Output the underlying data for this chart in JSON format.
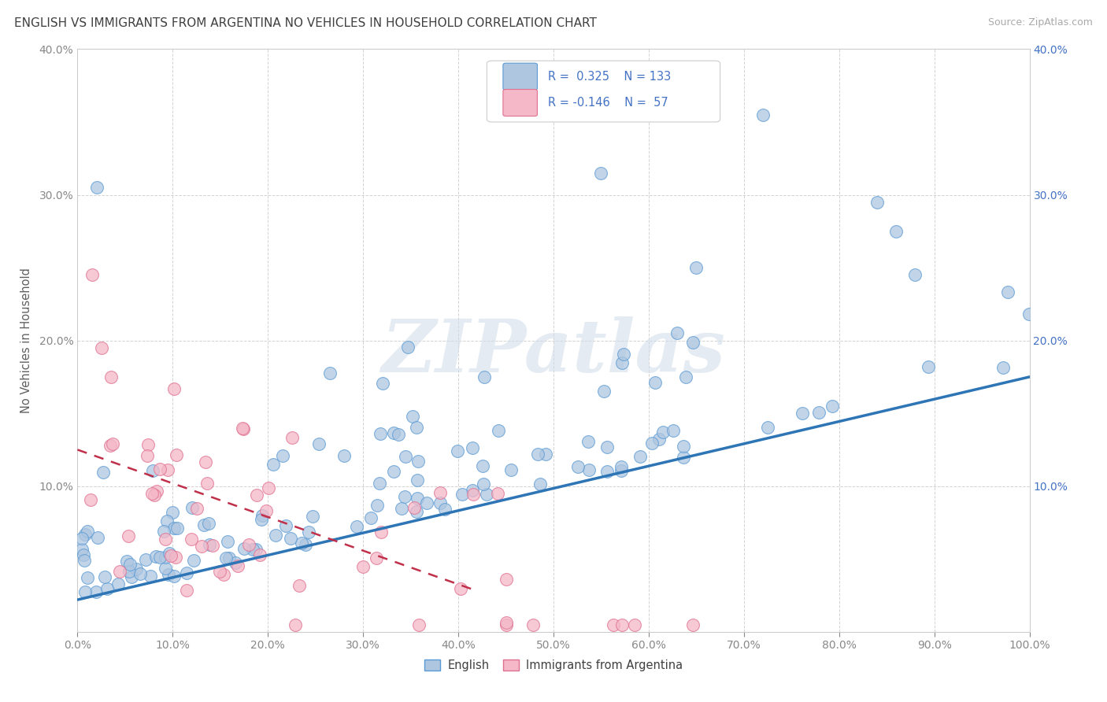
{
  "title": "ENGLISH VS IMMIGRANTS FROM ARGENTINA NO VEHICLES IN HOUSEHOLD CORRELATION CHART",
  "source": "Source: ZipAtlas.com",
  "ylabel": "No Vehicles in Household",
  "xlim": [
    0,
    1.0
  ],
  "ylim": [
    0,
    0.4
  ],
  "xticks": [
    0.0,
    0.1,
    0.2,
    0.3,
    0.4,
    0.5,
    0.6,
    0.7,
    0.8,
    0.9,
    1.0
  ],
  "yticks": [
    0.0,
    0.1,
    0.2,
    0.3,
    0.4
  ],
  "english_color": "#aec6e0",
  "english_edge_color": "#5b9bd5",
  "argentina_color": "#f4b8c8",
  "argentina_edge_color": "#e07090",
  "trend_english_color": "#2e75b6",
  "trend_argentina_color": "#c0304a",
  "R_english": 0.325,
  "N_english": 133,
  "R_argentina": -0.146,
  "N_argentina": 57,
  "watermark_text": "ZIPatlas",
  "background_color": "#ffffff",
  "grid_color": "#c8c8c8",
  "legend_text_color": "#4472c4",
  "title_color": "#404040",
  "axis_label_color": "#606060",
  "tick_color": "#888888",
  "right_axis_color": "#4472c4",
  "trend_en_x0": 0.0,
  "trend_en_x1": 1.0,
  "trend_en_y0": 0.022,
  "trend_en_y1": 0.175,
  "trend_ar_x0": 0.0,
  "trend_ar_x1": 0.42,
  "trend_ar_y0": 0.125,
  "trend_ar_y1": 0.028
}
